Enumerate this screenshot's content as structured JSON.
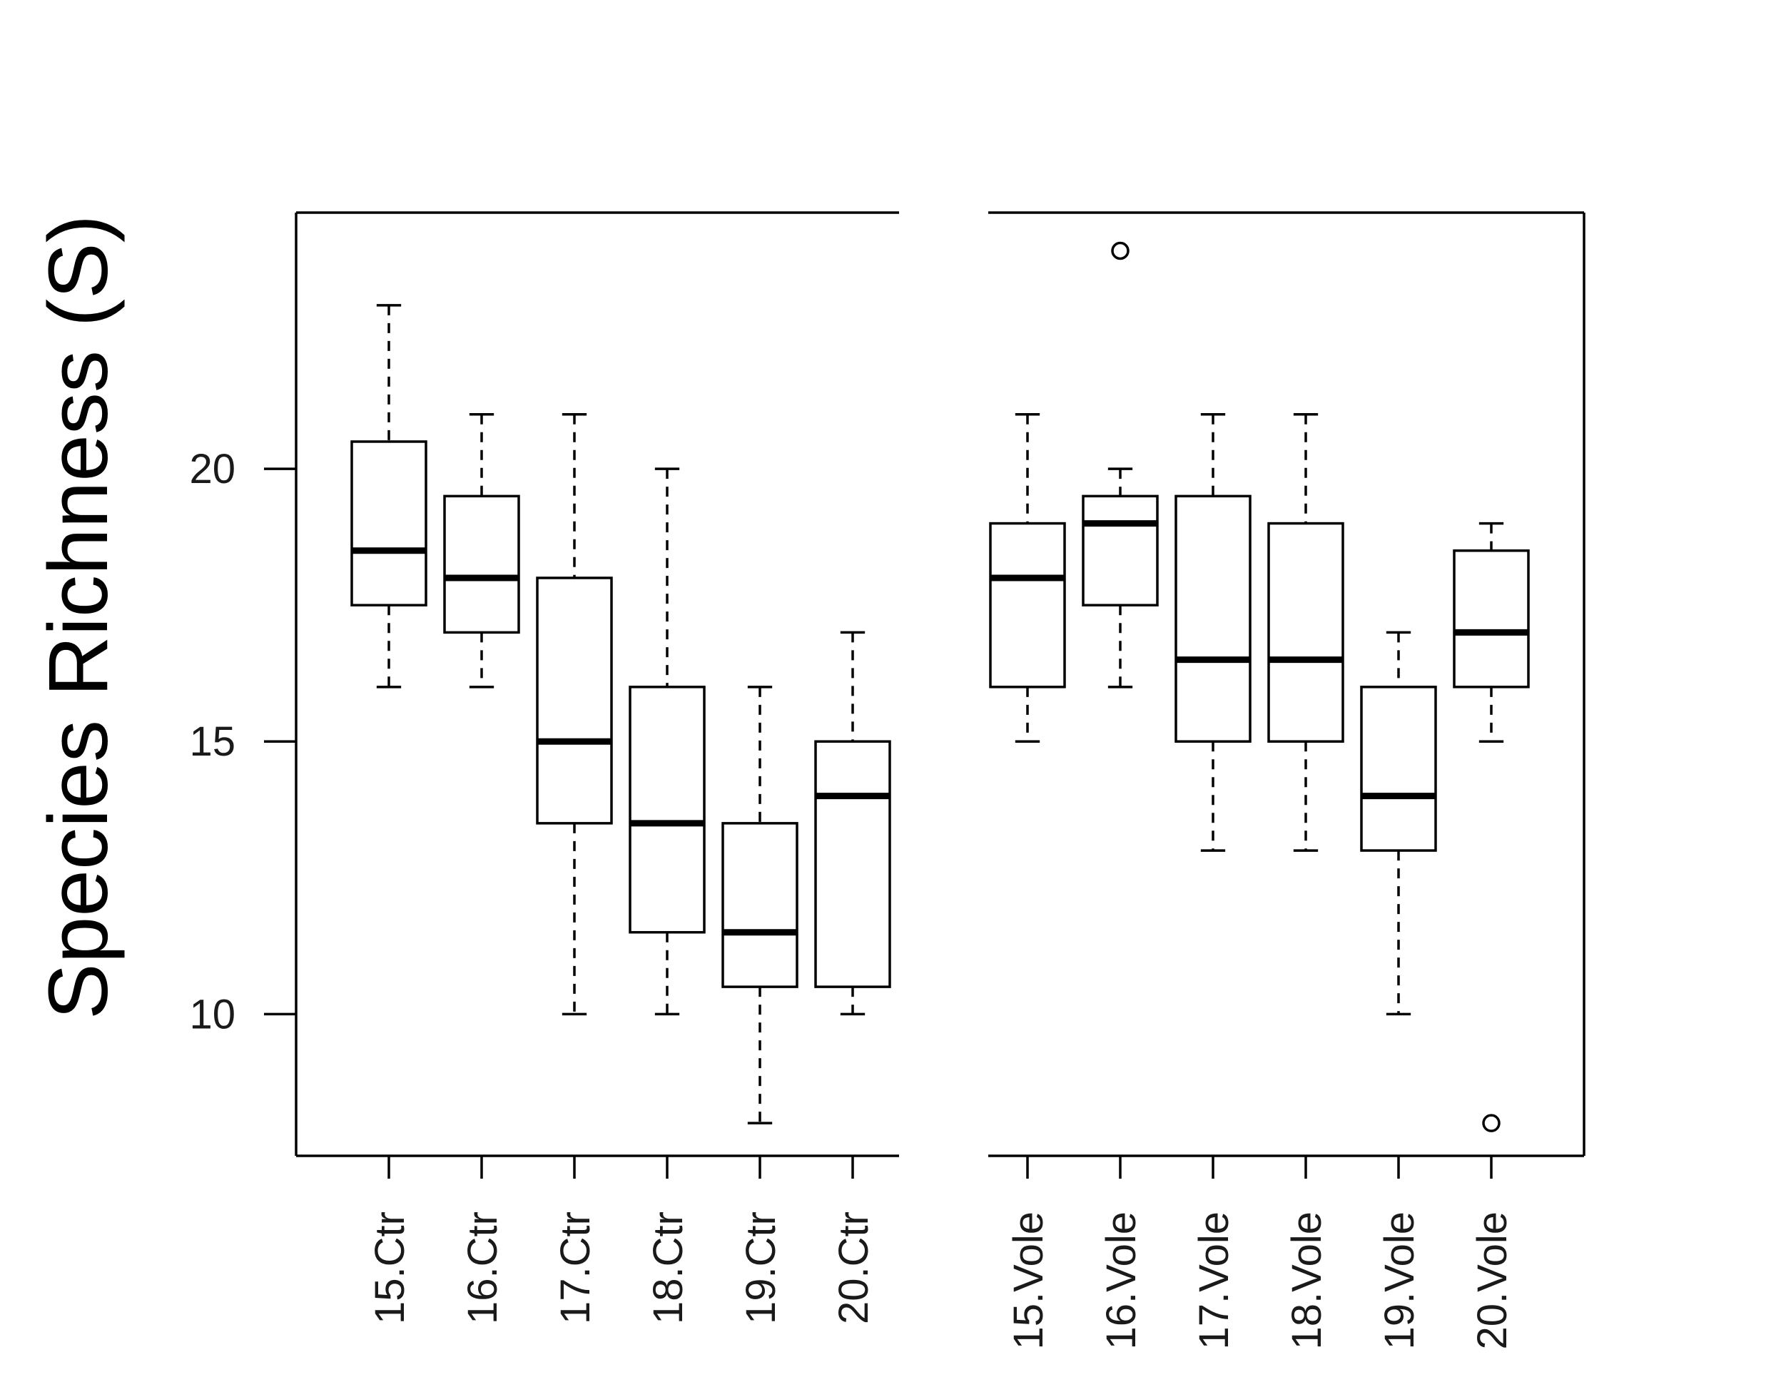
{
  "chart_data": {
    "type": "boxplot",
    "title": "",
    "xlabel": "",
    "ylabel": "Species Richness (S)",
    "ylim": [
      7.4,
      24.7
    ],
    "yticks": [
      10,
      15,
      20
    ],
    "grid": false,
    "panels": [
      {
        "name": "Ctr",
        "categories": [
          "15.Ctr",
          "16.Ctr",
          "17.Ctr",
          "18.Ctr",
          "19.Ctr",
          "20.Ctr"
        ],
        "boxes": [
          {
            "whisker_low": 16,
            "q1": 17.5,
            "median": 18.5,
            "q3": 20.5,
            "whisker_high": 23,
            "outliers": []
          },
          {
            "whisker_low": 16,
            "q1": 17,
            "median": 18,
            "q3": 19.5,
            "whisker_high": 21,
            "outliers": []
          },
          {
            "whisker_low": 10,
            "q1": 13.5,
            "median": 15,
            "q3": 18,
            "whisker_high": 21,
            "outliers": []
          },
          {
            "whisker_low": 10,
            "q1": 11.5,
            "median": 13.5,
            "q3": 16,
            "whisker_high": 20,
            "outliers": []
          },
          {
            "whisker_low": 8,
            "q1": 10.5,
            "median": 11.5,
            "q3": 13.5,
            "whisker_high": 16,
            "outliers": []
          },
          {
            "whisker_low": 10,
            "q1": 10.5,
            "median": 14,
            "q3": 15,
            "whisker_high": 17,
            "outliers": []
          }
        ]
      },
      {
        "name": "Vole",
        "categories": [
          "15.Vole",
          "16.Vole",
          "17.Vole",
          "18.Vole",
          "19.Vole",
          "20.Vole"
        ],
        "boxes": [
          {
            "whisker_low": 15,
            "q1": 16,
            "median": 18,
            "q3": 19,
            "whisker_high": 21,
            "outliers": []
          },
          {
            "whisker_low": 16,
            "q1": 17.5,
            "median": 19,
            "q3": 19.5,
            "whisker_high": 20,
            "outliers": [
              24
            ]
          },
          {
            "whisker_low": 13,
            "q1": 15,
            "median": 16.5,
            "q3": 19.5,
            "whisker_high": 21,
            "outliers": []
          },
          {
            "whisker_low": 13,
            "q1": 15,
            "median": 16.5,
            "q3": 19,
            "whisker_high": 21,
            "outliers": []
          },
          {
            "whisker_low": 10,
            "q1": 13,
            "median": 14,
            "q3": 16,
            "whisker_high": 17,
            "outliers": []
          },
          {
            "whisker_low": 15,
            "q1": 16,
            "median": 17,
            "q3": 18.5,
            "whisker_high": 19,
            "outliers": [
              8
            ]
          }
        ]
      }
    ]
  }
}
